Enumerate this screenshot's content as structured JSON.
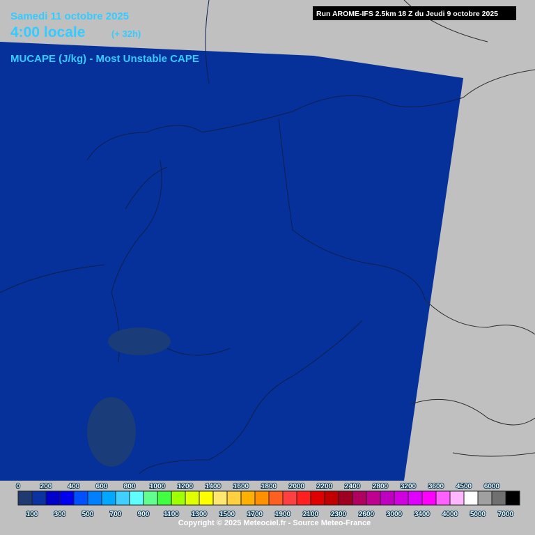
{
  "header": {
    "date": "Samedi 11 octobre 2025",
    "time": "4:00 locale",
    "lead": "(+ 32h)",
    "parameter": "MUCAPE (J/kg) - Most Unstable CAPE",
    "run": "Run AROME-IFS 2.5km 18 Z du Jeudi 9 octobre 2025"
  },
  "scale": {
    "values": [
      0,
      100,
      200,
      300,
      400,
      500,
      600,
      700,
      800,
      900,
      1000,
      1100,
      1200,
      1300,
      1400,
      1500,
      1600,
      1700,
      1800,
      1900,
      2000,
      2100,
      2200,
      2300,
      2400,
      2600,
      2800,
      3000,
      3200,
      3400,
      3600,
      4000,
      4500,
      5000,
      6000,
      7000
    ],
    "colors": [
      "#1e3a70",
      "#0a32a0",
      "#0000c8",
      "#0000f0",
      "#0050ff",
      "#0080ff",
      "#00a8ff",
      "#40d0ff",
      "#60ffff",
      "#60ff90",
      "#40ff40",
      "#a0ff00",
      "#e0ff00",
      "#ffff00",
      "#ffe870",
      "#ffd040",
      "#ffb000",
      "#ff9000",
      "#ff6020",
      "#ff4040",
      "#ff2020",
      "#e00000",
      "#c00000",
      "#a00020",
      "#b00060",
      "#c00090",
      "#c000c0",
      "#d000e0",
      "#e000ff",
      "#ff00ff",
      "#ff60ff",
      "#ffb8ff",
      "#ffffff",
      "#a0a0a0",
      "#707070",
      "#000000"
    ]
  },
  "footer": {
    "copyright": "Copyright © 2025 Meteociel.fr - Source Meteo-France"
  }
}
